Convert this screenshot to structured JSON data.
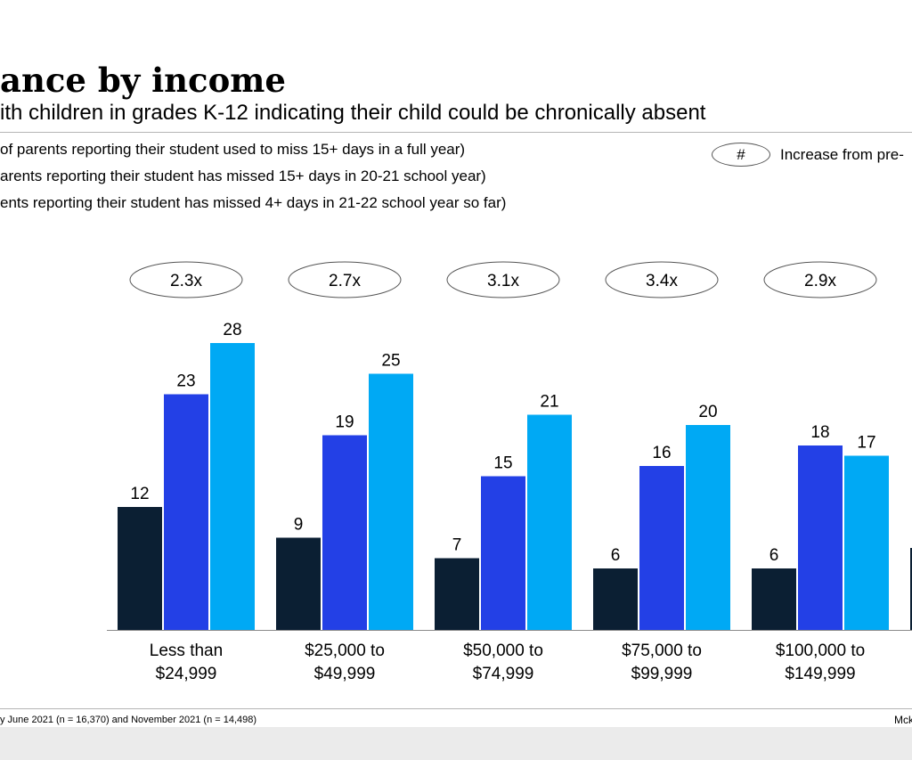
{
  "header": {
    "title": "ance by income",
    "subtitle": "ith children in grades K-12 indicating their child could be chronically absent"
  },
  "legend": {
    "items": [
      {
        "label": "of parents reporting their student used to miss 15+ days in a full year)",
        "color": "#0b1f33"
      },
      {
        "label": "arents reporting their student has missed 15+ days in 20-21 school year)",
        "color": "#2340e6"
      },
      {
        "label": "ents reporting their student has missed 4+ days in 21-22 school year so far)",
        "color": "#00a9f4"
      }
    ],
    "key_symbol": "#",
    "key_label": "Increase from pre-"
  },
  "chart_data": {
    "type": "bar",
    "categories": [
      [
        "Less than",
        "$24,999"
      ],
      [
        "$25,000 to",
        "$49,999"
      ],
      [
        "$50,000 to",
        "$74,999"
      ],
      [
        "$75,000 to",
        "$99,999"
      ],
      [
        "$100,000 to",
        "$149,999"
      ]
    ],
    "series": [
      {
        "values": [
          12,
          9,
          7,
          6,
          6
        ],
        "color": "#0b1f33"
      },
      {
        "values": [
          23,
          19,
          15,
          16,
          18
        ],
        "color": "#2340e6"
      },
      {
        "values": [
          28,
          25,
          21,
          20,
          17
        ],
        "color": "#00a9f4"
      }
    ],
    "multipliers": [
      "2.3x",
      "2.7x",
      "3.1x",
      "3.4x",
      "2.9x"
    ],
    "partial_next_category_first_value": 8
  },
  "footer": {
    "note": "y June 2021 (n = 16,370) and November 2021  (n = 14,498)",
    "brand": "Mck"
  }
}
